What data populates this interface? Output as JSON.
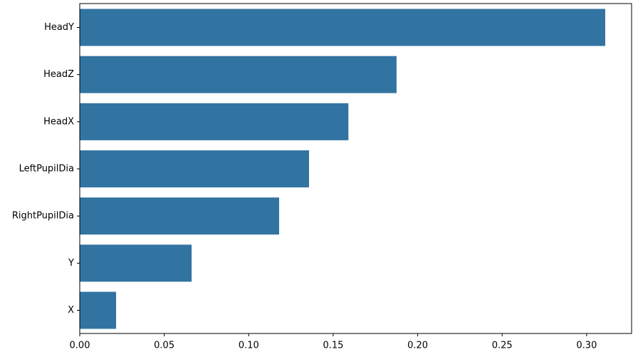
{
  "chart_data": {
    "type": "barh",
    "categories": [
      "HeadY",
      "HeadZ",
      "HeadX",
      "LeftPupilDia",
      "RightPupilDia",
      "Y",
      "X"
    ],
    "values": [
      0.311,
      0.1875,
      0.159,
      0.1357,
      0.118,
      0.0662,
      0.0215
    ],
    "color": "#3274a1",
    "xlim": [
      0,
      0.3266
    ],
    "xticks": [
      {
        "value": 0,
        "label": "0.00"
      },
      {
        "value": 0.05,
        "label": "0.05"
      },
      {
        "value": 0.1,
        "label": "0.10"
      },
      {
        "value": 0.15,
        "label": "0.15"
      },
      {
        "value": 0.2,
        "label": "0.20"
      },
      {
        "value": 0.25,
        "label": "0.25"
      },
      {
        "value": 0.3,
        "label": "0.30"
      }
    ],
    "grid": false
  }
}
